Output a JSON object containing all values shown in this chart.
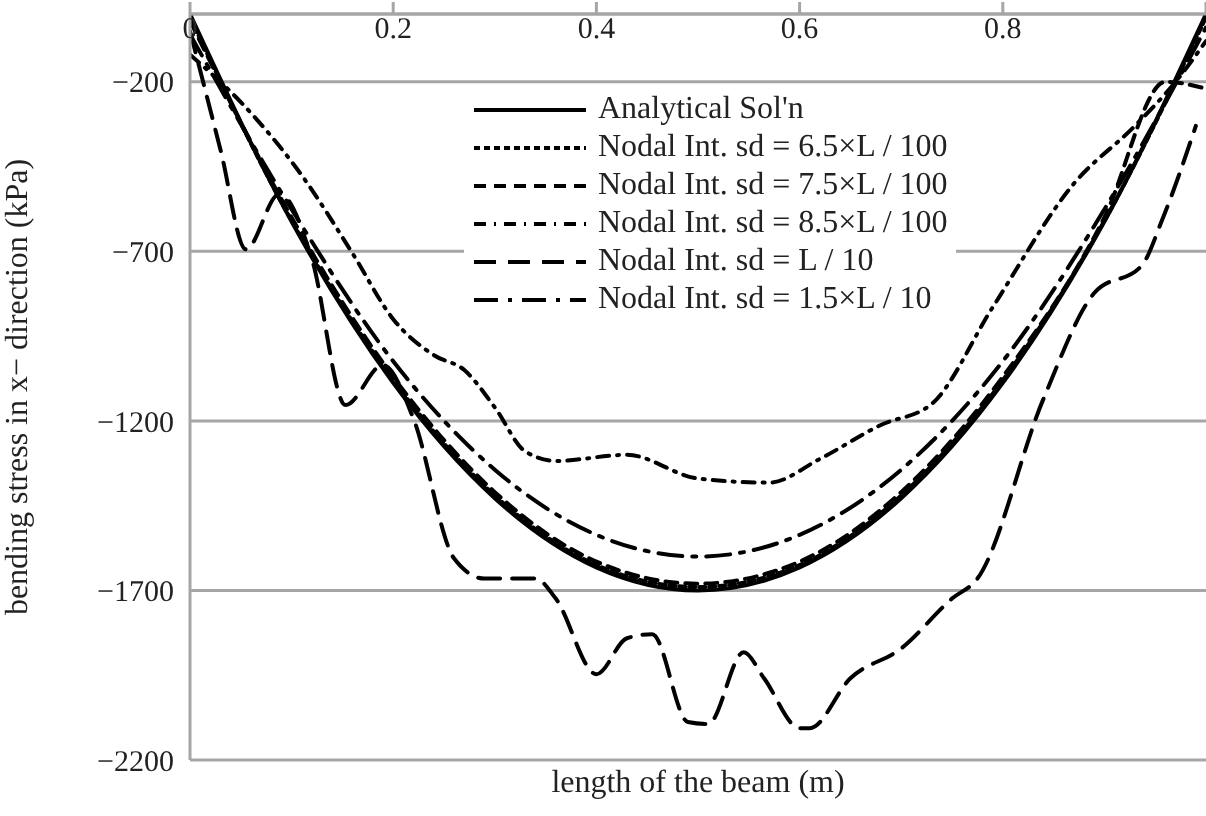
{
  "chart_data": {
    "type": "line",
    "xlabel": "length of the beam (m)",
    "ylabel": "bending stress in x− direction (kPa)",
    "xlim": [
      0,
      1
    ],
    "xticks": [
      0,
      0.2,
      0.4,
      0.6,
      0.8,
      {
        "value": 1,
        "label": null
      }
    ],
    "ylim": [
      -2200,
      0
    ],
    "yticks": [
      -2200,
      -1700,
      -1200,
      -700,
      -200
    ],
    "grid": "y",
    "legend": "top",
    "marker": "none",
    "series": [
      {
        "name": "Analytical Sol'n",
        "color": "#000000",
        "line_style": "solid",
        "x": [
          0,
          0.1,
          0.2,
          0.3,
          0.4,
          0.5,
          0.6,
          0.7,
          0.8,
          0.9,
          1
        ],
        "values": [
          0,
          -612,
          -1088,
          -1428,
          -1632,
          -1700,
          -1632,
          -1428,
          -1088,
          -612,
          0
        ]
      },
      {
        "name": "Nodal Int. sd = 6.5×L / 100",
        "color": "#000000",
        "line_style": "dotted",
        "x": [
          0,
          0.1,
          0.2,
          0.3,
          0.4,
          0.5,
          0.6,
          0.7,
          0.8,
          0.9,
          1
        ],
        "values": [
          -10,
          -610,
          -1080,
          -1420,
          -1625,
          -1690,
          -1625,
          -1420,
          -1080,
          -610,
          -10
        ]
      },
      {
        "name": "Nodal Int. sd = 7.5×L / 100",
        "color": "#000000",
        "line_style": "dashed",
        "x": [
          0,
          0.1,
          0.2,
          0.3,
          0.4,
          0.5,
          0.6,
          0.7,
          0.8,
          0.9,
          0.96,
          1
        ],
        "values": [
          -20,
          -600,
          -1070,
          -1410,
          -1615,
          -1680,
          -1615,
          -1410,
          -1070,
          -600,
          -200,
          -220
        ]
      },
      {
        "name": "Nodal Int. sd = 8.5×L / 100",
        "color": "#000000",
        "line_style": "dashdot",
        "x": [
          0,
          0.05,
          0.11,
          0.16,
          0.2,
          0.24,
          0.27,
          0.3,
          0.33,
          0.36,
          0.43,
          0.5,
          0.57,
          0.62,
          0.68,
          0.73,
          0.79,
          0.87,
          0.93,
          0.97,
          1
        ],
        "values": [
          -120,
          -260,
          -476,
          -706,
          -900,
          -1006,
          -1050,
          -1160,
          -1290,
          -1318,
          -1300,
          -1370,
          -1382,
          -1312,
          -1212,
          -1150,
          -865,
          -500,
          -330,
          -200,
          -80
        ]
      },
      {
        "name": "Nodal Int. sd = L / 10",
        "color": "#000000",
        "line_style": "longdash",
        "x": [
          0,
          0.03,
          0.055,
          0.088,
          0.12,
          0.153,
          0.19,
          0.22,
          0.26,
          0.29,
          0.34,
          0.36,
          0.4,
          0.43,
          0.455,
          0.49,
          0.51,
          0.545,
          0.565,
          0.6,
          0.61,
          0.65,
          0.7,
          0.75,
          0.775,
          0.84,
          0.89,
          0.937,
          0.957,
          0.99
        ],
        "values": [
          -50,
          -400,
          -694,
          -530,
          -723,
          -1153,
          -1035,
          -1194,
          -1606,
          -1665,
          -1665,
          -1724,
          -1947,
          -1841,
          -1829,
          -2088,
          -2094,
          -1882,
          -1959,
          -2106,
          -2106,
          -1959,
          -1871,
          -1724,
          -1665,
          -1135,
          -823,
          -741,
          -606,
          -330
        ]
      },
      {
        "name": "Nodal Int. sd = 1.5×L / 10",
        "color": "#000000",
        "line_style": "longdashdot",
        "x": [
          0,
          0.1,
          0.2,
          0.3,
          0.4,
          0.5,
          0.6,
          0.7,
          0.8,
          0.9,
          1
        ],
        "values": [
          -60,
          -576,
          -1024,
          -1344,
          -1536,
          -1600,
          -1536,
          -1344,
          -1024,
          -576,
          -40
        ]
      }
    ]
  }
}
